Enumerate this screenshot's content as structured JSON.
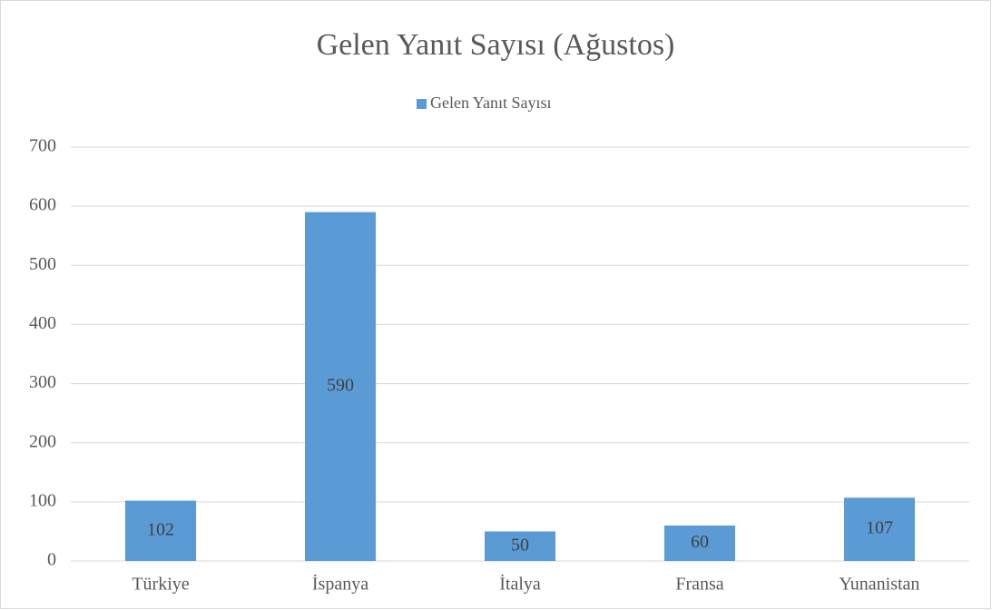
{
  "chart_data": {
    "type": "bar",
    "title": "Gelen Yanıt Sayısı (Ağustos)",
    "categories": [
      "Türkiye",
      "İspanya",
      "İtalya",
      "Fransa",
      "Yunanistan"
    ],
    "series": [
      {
        "name": "Gelen Yanıt Sayısı",
        "color": "#5b9bd5",
        "values": [
          102,
          590,
          50,
          60,
          107
        ]
      }
    ],
    "ylim": [
      0,
      700
    ],
    "yticks": [
      0,
      100,
      200,
      300,
      400,
      500,
      600,
      700
    ],
    "grid": true,
    "legend": "top"
  }
}
